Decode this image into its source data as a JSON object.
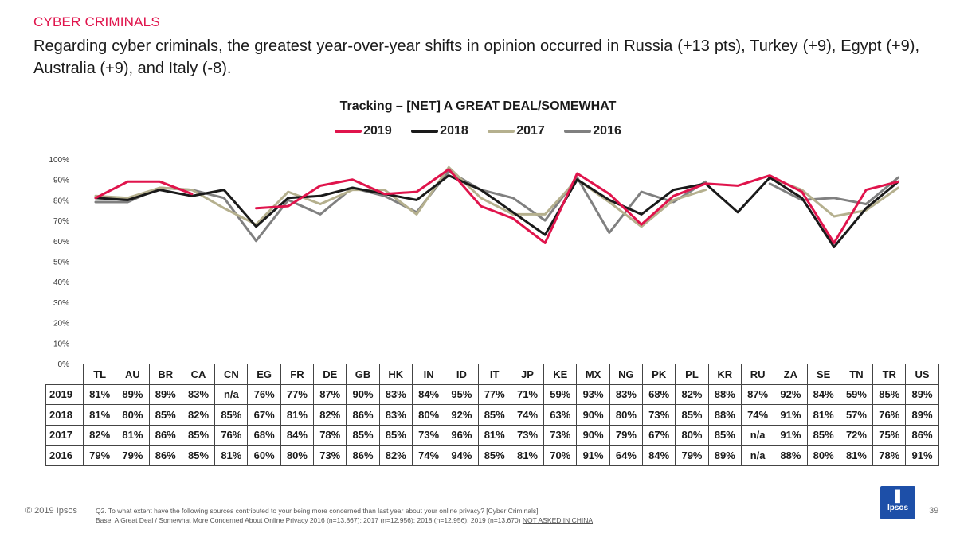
{
  "section_label": "CYBER CRIMINALS",
  "headline": "Regarding cyber criminals, the greatest year-over-year shifts in opinion occurred in Russia (+13 pts), Turkey (+9), Egypt (+9), Australia (+9), and Italy (-8).",
  "colors": {
    "2019": "#e0144c",
    "2018": "#1a1a1a",
    "2017": "#b5b08e",
    "2016": "#808080"
  },
  "chart_data": {
    "type": "line",
    "title": "Tracking – [NET] A GREAT DEAL/SOMEWHAT",
    "ylim": [
      0,
      100
    ],
    "y_ticks": [
      "0%",
      "10%",
      "20%",
      "30%",
      "40%",
      "50%",
      "60%",
      "70%",
      "80%",
      "90%",
      "100%"
    ],
    "categories": [
      "TL",
      "AU",
      "BR",
      "CA",
      "CN",
      "EG",
      "FR",
      "DE",
      "GB",
      "HK",
      "IN",
      "ID",
      "IT",
      "JP",
      "KE",
      "MX",
      "NG",
      "PK",
      "PL",
      "KR",
      "RU",
      "ZA",
      "SE",
      "TN",
      "TR",
      "US"
    ],
    "series": [
      {
        "name": "2019",
        "values": [
          81,
          89,
          89,
          83,
          null,
          76,
          77,
          87,
          90,
          83,
          84,
          95,
          77,
          71,
          59,
          93,
          83,
          68,
          82,
          88,
          87,
          92,
          84,
          59,
          85,
          89
        ]
      },
      {
        "name": "2018",
        "values": [
          81,
          80,
          85,
          82,
          85,
          67,
          81,
          82,
          86,
          83,
          80,
          92,
          85,
          74,
          63,
          90,
          80,
          73,
          85,
          88,
          74,
          91,
          81,
          57,
          76,
          89
        ]
      },
      {
        "name": "2017",
        "values": [
          82,
          81,
          86,
          85,
          76,
          68,
          84,
          78,
          85,
          85,
          73,
          96,
          81,
          73,
          73,
          90,
          79,
          67,
          80,
          85,
          null,
          91,
          85,
          72,
          75,
          86
        ]
      },
      {
        "name": "2016",
        "values": [
          79,
          79,
          86,
          85,
          81,
          60,
          80,
          73,
          86,
          82,
          74,
          94,
          85,
          81,
          70,
          91,
          64,
          84,
          79,
          89,
          null,
          88,
          80,
          81,
          78,
          91
        ]
      }
    ]
  },
  "table": {
    "rows": [
      {
        "label": "2019",
        "cells": [
          "81%",
          "89%",
          "89%",
          "83%",
          "n/a",
          "76%",
          "77%",
          "87%",
          "90%",
          "83%",
          "84%",
          "95%",
          "77%",
          "71%",
          "59%",
          "93%",
          "83%",
          "68%",
          "82%",
          "88%",
          "87%",
          "92%",
          "84%",
          "59%",
          "85%",
          "89%"
        ]
      },
      {
        "label": "2018",
        "cells": [
          "81%",
          "80%",
          "85%",
          "82%",
          "85%",
          "67%",
          "81%",
          "82%",
          "86%",
          "83%",
          "80%",
          "92%",
          "85%",
          "74%",
          "63%",
          "90%",
          "80%",
          "73%",
          "85%",
          "88%",
          "74%",
          "91%",
          "81%",
          "57%",
          "76%",
          "89%"
        ]
      },
      {
        "label": "2017",
        "cells": [
          "82%",
          "81%",
          "86%",
          "85%",
          "76%",
          "68%",
          "84%",
          "78%",
          "85%",
          "85%",
          "73%",
          "96%",
          "81%",
          "73%",
          "73%",
          "90%",
          "79%",
          "67%",
          "80%",
          "85%",
          "n/a",
          "91%",
          "85%",
          "72%",
          "75%",
          "86%"
        ]
      },
      {
        "label": "2016",
        "cells": [
          "79%",
          "79%",
          "86%",
          "85%",
          "81%",
          "60%",
          "80%",
          "73%",
          "86%",
          "82%",
          "74%",
          "94%",
          "85%",
          "81%",
          "70%",
          "91%",
          "64%",
          "84%",
          "79%",
          "89%",
          "n/a",
          "88%",
          "80%",
          "81%",
          "78%",
          "91%"
        ]
      }
    ]
  },
  "footer": {
    "copyright": "© 2019 Ipsos",
    "question": "Q2. To what extent have the following sources contributed to your being more concerned than last year about your online privacy? [Cyber Criminals]",
    "base": "Base: A Great Deal / Somewhat More Concerned About Online Privacy 2016 (n=13,867); 2017 (n=12,956); 2018 (n=12,956); 2019 (n=13,670)",
    "note": "NOT ASKED IN CHINA",
    "page_number": "39",
    "logo_text": "Ipsos"
  }
}
